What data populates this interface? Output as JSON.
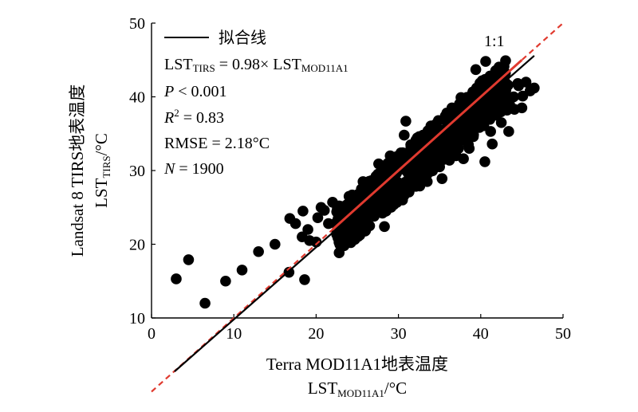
{
  "chart_data": {
    "type": "scatter",
    "title": "",
    "xlabel": "Terra MOD11A1地表温度",
    "xlabel_line2": {
      "base": "LST",
      "sub": "MOD11A1",
      "suffix": "/°C"
    },
    "ylabel": "Landsat 8 TIRS地表温度",
    "ylabel_line2": {
      "base": "LST",
      "sub": "TIRS",
      "suffix": "/°C"
    },
    "xlim": [
      0,
      50
    ],
    "ylim": [
      10,
      50
    ],
    "xticks": [
      0,
      10,
      20,
      30,
      40,
      50
    ],
    "yticks": [
      10,
      20,
      30,
      40,
      50
    ],
    "grid": false,
    "legend": {
      "position": "top-left",
      "entries": [
        {
          "label": "拟合线",
          "color": "#000000",
          "style": "solid"
        }
      ]
    },
    "fit_line": {
      "slope": 0.98,
      "x": [
        2.8,
        46.5
      ],
      "color": "#000000"
    },
    "identity_line": {
      "label": "1:1",
      "x": [
        0,
        50
      ],
      "color": "#e03a2f",
      "style": "dashed"
    },
    "annotations": {
      "equation": {
        "lhs": "LST",
        "lhs_sub": "TIRS",
        "mid": " = 0.98× LST",
        "rhs_sub": "MOD11A1"
      },
      "p_value": {
        "var": "P",
        "rest": " < 0.001"
      },
      "r2": {
        "var": "R",
        "sup": "2",
        "rest": " = 0.83"
      },
      "rmse": "RMSE = 2.18°C",
      "n": {
        "var": "N",
        "rest": " = 1900"
      }
    },
    "points": {
      "x": [
        3.0,
        4.5,
        6.5,
        9.0,
        11.0,
        13.0,
        15.0,
        16.7,
        16.8,
        17.5,
        18.3,
        18.4,
        18.6,
        19.0,
        19.2,
        20.0,
        20.2,
        20.6,
        21.0,
        21.5,
        22.0,
        22.5,
        23.0,
        23.3,
        23.8,
        24.0,
        24.4,
        25.0,
        25.5,
        26.0,
        26.5,
        27.0,
        27.5,
        28.0,
        28.5,
        29.0,
        29.5,
        30.0,
        30.5,
        31.0,
        31.5,
        32.0,
        32.5,
        33.0,
        33.5,
        34.0,
        34.5,
        35.0,
        35.5,
        36.0,
        36.5,
        37.0,
        37.5,
        38.0,
        38.5,
        39.0,
        39.5,
        40.0,
        40.3,
        40.5,
        41.0,
        41.5,
        42.0,
        42.5,
        43.0,
        43.5,
        44.0,
        44.5,
        45.0,
        45.5,
        46.0,
        46.5,
        22.4,
        23.1,
        24.2,
        25.3,
        26.2,
        27.3,
        28.1,
        29.2,
        30.3,
        31.2,
        32.3,
        33.1,
        34.2,
        35.1,
        36.2,
        37.2,
        38.3,
        39.1,
        40.2,
        41.2,
        42.1,
        43.2,
        44.1,
        45.1,
        24.6,
        26.8,
        29.7,
        31.8,
        34.6,
        36.8,
        39.7,
        41.9,
        44.6,
        23.4,
        25.7,
        28.3,
        30.7,
        33.4,
        35.7,
        38.6,
        40.8,
        43.4,
        27.6,
        32.6,
        37.6,
        42.7,
        40.6,
        39.4,
        38.2,
        41.4,
        33.8,
        28.8,
        25.2,
        22.8,
        30.9,
        35.3,
        37.9,
        42.3
      ],
      "y": [
        15.3,
        17.9,
        12.0,
        15.0,
        16.5,
        19.0,
        20.0,
        16.2,
        23.5,
        22.8,
        21.0,
        24.5,
        15.2,
        22.0,
        20.5,
        20.3,
        23.6,
        25.0,
        24.6,
        22.8,
        25.7,
        24.4,
        22.0,
        24.3,
        23.0,
        26.5,
        25.5,
        21.5,
        27.5,
        26.2,
        22.5,
        27.5,
        29.5,
        30.5,
        24.5,
        32.0,
        27.8,
        31.5,
        26.0,
        30.2,
        33.5,
        29.5,
        32.0,
        34.8,
        28.5,
        33.5,
        36.2,
        30.5,
        35.5,
        33.2,
        38.5,
        32.0,
        35.0,
        39.3,
        33.5,
        37.0,
        41.2,
        36.6,
        38.4,
        31.2,
        40.6,
        38.0,
        42.5,
        36.5,
        43.2,
        39.0,
        40.0,
        41.8,
        38.5,
        42.0,
        40.8,
        41.2,
        22.9,
        21.6,
        24.0,
        23.7,
        28.4,
        25.2,
        29.0,
        27.0,
        32.4,
        29.6,
        31.1,
        33.4,
        31.0,
        34.4,
        31.4,
        37.0,
        36.9,
        34.6,
        39.8,
        35.3,
        40.2,
        38.2,
        38.3,
        40.1,
        25.8,
        24.0,
        31.0,
        28.4,
        32.5,
        35.2,
        36.2,
        37.5,
        41.5,
        19.8,
        28.5,
        22.4,
        34.8,
        29.3,
        37.4,
        33.0,
        42.0,
        35.3,
        30.9,
        27.9,
        39.9,
        41.6,
        44.8,
        43.7,
        34.6,
        33.6,
        34.4,
        26.2,
        23.0,
        25.2,
        36.7,
        28.9,
        31.6,
        40.5
      ],
      "color": "#000000"
    }
  }
}
